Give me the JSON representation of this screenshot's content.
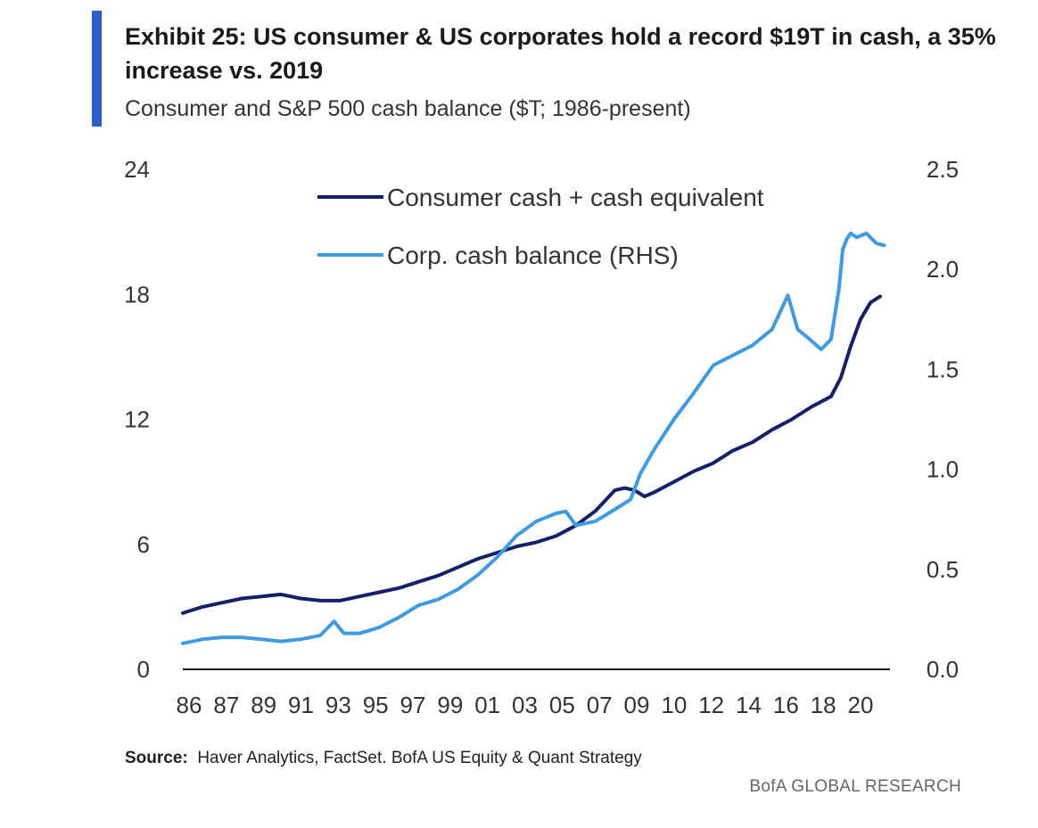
{
  "header": {
    "accent_color": "#2d5fcc",
    "title": "Exhibit 25: US consumer & US corporates hold a record $19T in cash, a 35% increase vs. 2019",
    "subtitle": "Consumer and S&P 500 cash balance ($T; 1986-present)"
  },
  "footer": {
    "source_label": "Source:",
    "source_text": "Haver Analytics, FactSet. BofA US Equity & Quant Strategy",
    "brand": "BofA GLOBAL RESEARCH"
  },
  "chart_data": {
    "type": "line",
    "title": "Exhibit 25: US consumer & US corporates hold a record $19T in cash, a 35% increase vs. 2019",
    "subtitle": "Consumer and S&P 500 cash balance ($T; 1986-present)",
    "x_range": [
      1986,
      2022
    ],
    "x_tick_values": [
      1986,
      1987,
      1989,
      1991,
      1993,
      1995,
      1997,
      1999,
      2001,
      2003,
      2005,
      2007,
      2009,
      2010,
      2012,
      2014,
      2016,
      2018,
      2020
    ],
    "x_tick_labels": [
      "86",
      "87",
      "89",
      "91",
      "93",
      "95",
      "97",
      "99",
      "01",
      "03",
      "05",
      "07",
      "09",
      "10",
      "12",
      "14",
      "16",
      "18",
      "20"
    ],
    "y_left": {
      "range": [
        0,
        24
      ],
      "ticks": [
        0,
        6,
        12,
        18,
        24
      ],
      "tick_labels": [
        "0",
        "6",
        "12",
        "18",
        "24"
      ]
    },
    "y_right": {
      "range": [
        0,
        2.5
      ],
      "ticks": [
        0,
        0.5,
        1.0,
        1.5,
        2.0,
        2.5
      ],
      "tick_labels": [
        "0.0",
        "0.5",
        "1.0",
        "1.5",
        "2.0",
        "2.5"
      ]
    },
    "legend_position": "top-center",
    "series": [
      {
        "name": "Consumer cash + cash equivalent",
        "axis": "left",
        "color": "#15206b",
        "x": [
          1986,
          1987,
          1988,
          1989,
          1990,
          1991,
          1992,
          1993,
          1994,
          1995,
          1996,
          1997,
          1998,
          1999,
          2000,
          2001,
          2002,
          2003,
          2004,
          2005,
          2006,
          2007,
          2008,
          2008.5,
          2009,
          2009.5,
          2010,
          2011,
          2012,
          2013,
          2014,
          2015,
          2016,
          2017,
          2018,
          2019,
          2019.5,
          2020,
          2020.5,
          2021,
          2021.5
        ],
        "values": [
          2.7,
          3.0,
          3.2,
          3.4,
          3.5,
          3.6,
          3.4,
          3.3,
          3.3,
          3.5,
          3.7,
          3.9,
          4.2,
          4.5,
          4.9,
          5.3,
          5.6,
          5.9,
          6.1,
          6.4,
          6.9,
          7.6,
          8.6,
          8.7,
          8.6,
          8.3,
          8.5,
          9.0,
          9.5,
          9.9,
          10.5,
          10.9,
          11.5,
          12.0,
          12.6,
          13.1,
          14.0,
          15.5,
          16.8,
          17.6,
          17.9
        ]
      },
      {
        "name": "Corp. cash balance (RHS)",
        "axis": "right",
        "color": "#3d9be3",
        "x": [
          1986,
          1987,
          1988,
          1989,
          1990,
          1991,
          1992,
          1993,
          1993.7,
          1994.2,
          1995,
          1996,
          1997,
          1998,
          1999,
          2000,
          2001,
          2002,
          2003,
          2004,
          2005,
          2005.5,
          2006,
          2007,
          2008,
          2008.8,
          2009.3,
          2010,
          2011,
          2012,
          2013,
          2014,
          2015,
          2016,
          2016.8,
          2017.3,
          2017.8,
          2018.5,
          2019,
          2019.4,
          2019.6,
          2019.8,
          2020,
          2020.3,
          2020.8,
          2021.3,
          2021.7
        ],
        "values": [
          0.13,
          0.15,
          0.16,
          0.16,
          0.15,
          0.14,
          0.15,
          0.17,
          0.24,
          0.18,
          0.18,
          0.21,
          0.26,
          0.32,
          0.35,
          0.4,
          0.47,
          0.56,
          0.67,
          0.74,
          0.78,
          0.79,
          0.72,
          0.74,
          0.8,
          0.85,
          0.98,
          1.1,
          1.25,
          1.38,
          1.52,
          1.57,
          1.62,
          1.7,
          1.87,
          1.7,
          1.66,
          1.6,
          1.65,
          1.9,
          2.1,
          2.15,
          2.18,
          2.16,
          2.18,
          2.13,
          2.12
        ]
      }
    ]
  }
}
